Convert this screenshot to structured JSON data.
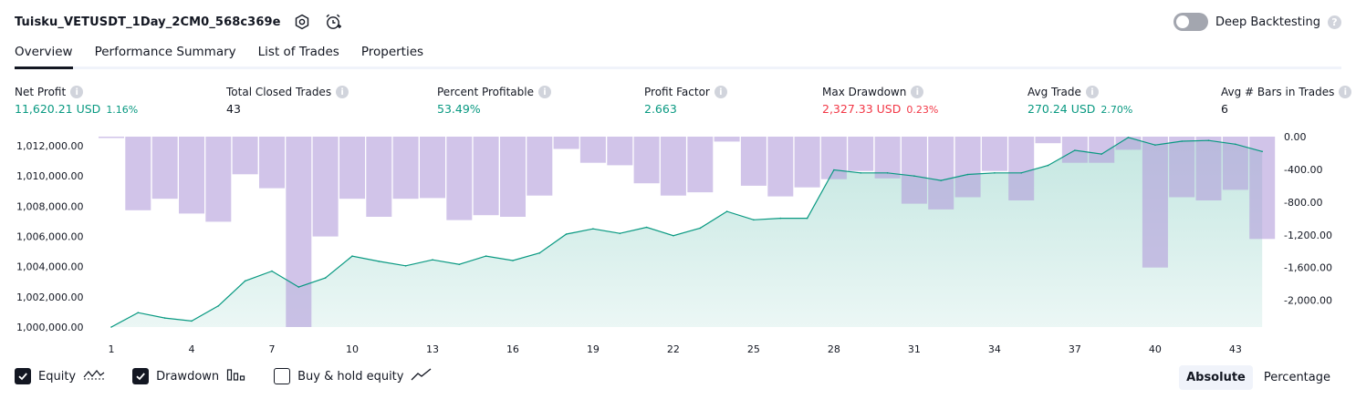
{
  "header": {
    "title": "Tuisku_VETUSDT_1Day_2CM0_568c369e",
    "deep_backtesting_label": "Deep Backtesting",
    "deep_backtesting_on": false,
    "help_glyph": "?"
  },
  "tabs": [
    {
      "label": "Overview",
      "active": true
    },
    {
      "label": "Performance Summary",
      "active": false
    },
    {
      "label": "List of Trades",
      "active": false
    },
    {
      "label": "Properties",
      "active": false
    }
  ],
  "metrics": {
    "info_glyph": "i",
    "net_profit": {
      "label": "Net Profit",
      "value": "11,620.21 USD",
      "pct": "1.16%"
    },
    "total_closed_trades": {
      "label": "Total Closed Trades",
      "value": "43"
    },
    "percent_profitable": {
      "label": "Percent Profitable",
      "value": "53.49%"
    },
    "profit_factor": {
      "label": "Profit Factor",
      "value": "2.663"
    },
    "max_drawdown": {
      "label": "Max Drawdown",
      "value": "2,327.33 USD",
      "pct": "0.23%"
    },
    "avg_trade": {
      "label": "Avg Trade",
      "value": "270.24 USD",
      "pct": "2.70%"
    },
    "avg_bars": {
      "label": "Avg # Bars in Trades",
      "value": "6"
    }
  },
  "chart_data": {
    "type": "area",
    "left_axis_ticks": [
      "1,012,000.00",
      "1,010,000.00",
      "1,008,000.00",
      "1,006,000.00",
      "1,004,000.00",
      "1,002,000.00",
      "1,000,000.00"
    ],
    "right_axis_ticks": [
      "0.00",
      "-400.00",
      "-800.00",
      "-1,200.00",
      "-1,600.00",
      "-2,000.00"
    ],
    "x_ticks": [
      "1",
      "4",
      "7",
      "10",
      "13",
      "16",
      "19",
      "22",
      "25",
      "28",
      "31",
      "34",
      "37",
      "40",
      "43"
    ],
    "ylim_equity": [
      1000000,
      1012000
    ],
    "ylim_drawdown": [
      -2327.33,
      0
    ],
    "series": [
      {
        "name": "Equity",
        "color": "#089981",
        "x": [
          1,
          2,
          3,
          4,
          5,
          6,
          7,
          8,
          9,
          10,
          11,
          12,
          13,
          14,
          15,
          16,
          17,
          18,
          19,
          20,
          21,
          22,
          23,
          24,
          25,
          26,
          27,
          28,
          29,
          30,
          31,
          32,
          33,
          34,
          35,
          36,
          37,
          38,
          39,
          40,
          41,
          42,
          43,
          44
        ],
        "values": [
          1000000,
          1000950,
          1000600,
          1000400,
          1001400,
          1003050,
          1003700,
          1002650,
          1003250,
          1004700,
          1004350,
          1004050,
          1004450,
          1004150,
          1004700,
          1004400,
          1004900,
          1006150,
          1006500,
          1006200,
          1006600,
          1006050,
          1006550,
          1007650,
          1007100,
          1007200,
          1007200,
          1010400,
          1010200,
          1010200,
          1010000,
          1009700,
          1010100,
          1010200,
          1010200,
          1010700,
          1011700,
          1011450,
          1012550,
          1012050,
          1012300,
          1012350,
          1012100,
          1011620
        ]
      },
      {
        "name": "Drawdown",
        "color": "#b39ddb",
        "x": [
          1,
          2,
          3,
          4,
          5,
          6,
          7,
          8,
          9,
          10,
          11,
          12,
          13,
          14,
          15,
          16,
          17,
          18,
          19,
          20,
          21,
          22,
          23,
          24,
          25,
          26,
          27,
          28,
          29,
          30,
          31,
          32,
          33,
          34,
          35,
          36,
          37,
          38,
          39,
          40,
          41,
          42,
          43,
          44
        ],
        "values": [
          0,
          -900,
          -760,
          -940,
          -1040,
          -460,
          -630,
          -2327.33,
          -1220,
          -760,
          -980,
          -760,
          -750,
          -1020,
          -960,
          -980,
          -720,
          -150,
          -320,
          -350,
          -570,
          -720,
          -680,
          -60,
          -600,
          -730,
          -620,
          -520,
          -420,
          -510,
          -820,
          -890,
          -740,
          -420,
          -780,
          -80,
          -320,
          -320,
          -160,
          -1600,
          -740,
          -780,
          -650,
          -1250
        ]
      }
    ]
  },
  "legend": {
    "equity": {
      "label": "Equity",
      "checked": true
    },
    "drawdown": {
      "label": "Drawdown",
      "checked": true
    },
    "buy_hold": {
      "label": "Buy & hold equity",
      "checked": false
    }
  },
  "modes": [
    {
      "label": "Absolute",
      "active": true
    },
    {
      "label": "Percentage",
      "active": false
    }
  ]
}
